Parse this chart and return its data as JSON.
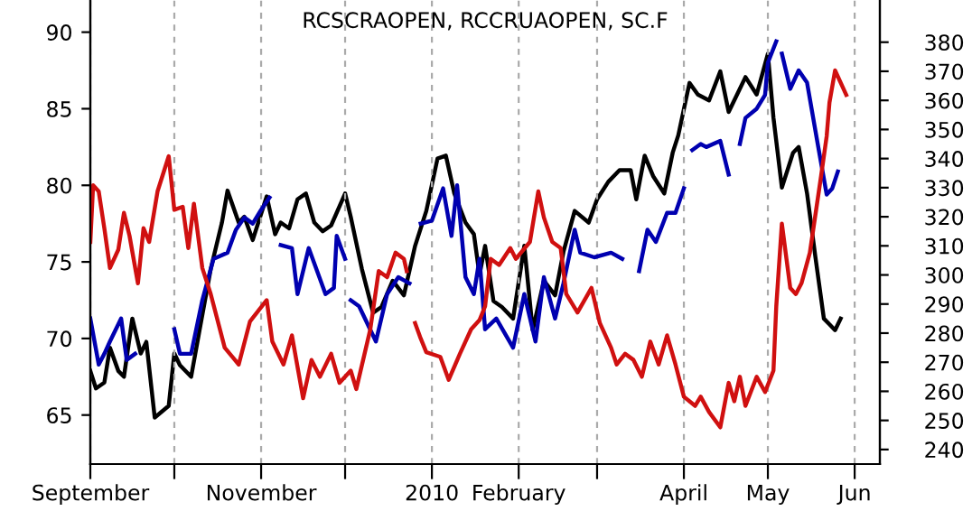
{
  "chart_data": {
    "type": "line",
    "title": "RCSCRAOPEN, RCCRUAOPEN, SC.F",
    "xlim": [
      "2009-09-01",
      "2010-06-10"
    ],
    "xticks": [
      {
        "value": "2009-09-01",
        "label": "September"
      },
      {
        "value": "2009-10-01",
        "label": null
      },
      {
        "value": "2009-11-01",
        "label": "November"
      },
      {
        "value": "2009-12-01",
        "label": null
      },
      {
        "value": "2010-01-01",
        "label": "2010"
      },
      {
        "value": "2010-02-01",
        "label": "February"
      },
      {
        "value": "2010-03-01",
        "label": null
      },
      {
        "value": "2010-04-01",
        "label": "April"
      },
      {
        "value": "2010-05-01",
        "label": "May"
      },
      {
        "value": "2010-06-01",
        "label": "Jun"
      }
    ],
    "ylim": [
      61.8,
      92.1
    ],
    "yticks": [
      65,
      70,
      75,
      80,
      85,
      90
    ],
    "y2lim": [
      235,
      394.5
    ],
    "y2ticks": [
      240,
      250,
      260,
      270,
      280,
      290,
      300,
      310,
      320,
      330,
      340,
      350,
      360,
      370,
      380
    ],
    "grid": "x",
    "marker": "none",
    "line_style": "solid",
    "series": [
      {
        "color": "#000000",
        "axis": "y2",
        "x": [
          "2009-09-01",
          "2009-09-03",
          "2009-09-06",
          "2009-09-08",
          "2009-09-11",
          "2009-09-13",
          "2009-09-16",
          "2009-09-19",
          "2009-09-21",
          "2009-09-24",
          "2009-09-29",
          "2009-10-01",
          "2009-10-03",
          "2009-10-07",
          "2009-10-10",
          "2009-10-14",
          "2009-10-18",
          "2009-10-20",
          "2009-10-24",
          "2009-10-26",
          "2009-10-29",
          "2009-10-31",
          "2009-11-03",
          "2009-11-06",
          "2009-11-08",
          "2009-11-11",
          "2009-11-14",
          "2009-11-17",
          "2009-11-20",
          "2009-11-23",
          "2009-11-26",
          "2009-12-01",
          "2009-12-03",
          "2009-12-07",
          "2009-12-11",
          "2009-12-14",
          "2009-12-18",
          "2009-12-22",
          "2009-12-26",
          "2009-12-30",
          "2010-01-03",
          "2010-01-06",
          "2010-01-09",
          "2010-01-13",
          "2010-01-16",
          "2010-01-18",
          "2010-01-20",
          "2010-01-23",
          "2010-01-26",
          "2010-01-30",
          "2010-02-03",
          "2010-02-06",
          "2010-02-10",
          "2010-02-14",
          "2010-02-17",
          "2010-02-21",
          "2010-02-26",
          "2010-03-01",
          "2010-03-05",
          "2010-03-09",
          "2010-03-13",
          "2010-03-15",
          "2010-03-18",
          "2010-03-21",
          "2010-03-25",
          "2010-03-28",
          "2010-03-30",
          "2010-04-03",
          "2010-04-06",
          "2010-04-10",
          "2010-04-14",
          "2010-04-17",
          "2010-04-20",
          "2010-04-23",
          "2010-04-27",
          "2010-05-01",
          "2010-05-03",
          "2010-05-06",
          "2010-05-10",
          "2010-05-12",
          "2010-05-15",
          "2010-05-18",
          "2010-05-21",
          "2010-05-23",
          "2010-05-25",
          "2010-05-27"
        ],
        "values": [
          267,
          261,
          263,
          275,
          267,
          265,
          285,
          273,
          277,
          251,
          255,
          273,
          269,
          265,
          281,
          302,
          318,
          329,
          318,
          320,
          312,
          318,
          327,
          314,
          318,
          316,
          326,
          328,
          318,
          315,
          317,
          328,
          320,
          302,
          287,
          289,
          298,
          293,
          310,
          322,
          340,
          341,
          328,
          318,
          314,
          300,
          310,
          291,
          289,
          285,
          310,
          281,
          298,
          293,
          308,
          322,
          318,
          326,
          332,
          336,
          336,
          326,
          341,
          334,
          328,
          342,
          348,
          366,
          362,
          360,
          370,
          356,
          362,
          368,
          362,
          376,
          354,
          330,
          342,
          344,
          328,
          306,
          285,
          283,
          281,
          285
        ]
      },
      {
        "color": "#0000b0",
        "x": [
          "2009-09-01",
          "2009-09-04",
          "2009-09-06",
          "2009-09-08",
          "2009-09-12",
          "2009-09-14",
          "2009-09-17",
          "2009-09-24",
          "2009-10-01",
          "2009-10-03",
          "2009-10-07",
          "2009-10-11",
          "2009-10-15",
          "2009-10-20",
          "2009-10-23",
          "2009-10-26",
          "2009-10-29",
          "2009-11-01",
          "2009-11-04",
          "2009-11-06",
          "2009-11-08",
          "2009-11-12",
          "2009-11-14",
          "2009-11-18",
          "2009-11-21",
          "2009-11-24",
          "2009-11-27",
          "2009-11-28",
          "2009-12-01",
          "2009-12-02",
          "2009-12-03",
          "2009-12-06",
          "2009-12-12",
          "2009-12-16",
          "2009-12-20",
          "2009-12-24",
          "2009-12-26",
          "2009-12-28",
          "2010-01-01",
          "2010-01-05",
          "2010-01-08",
          "2010-01-10",
          "2010-01-13",
          "2010-01-16",
          "2010-01-18",
          "2010-01-20",
          "2010-01-24",
          "2010-01-30",
          "2010-02-03",
          "2010-02-07",
          "2010-02-10",
          "2010-02-14",
          "2010-02-17",
          "2010-02-21",
          "2010-02-23",
          "2010-02-28",
          "2010-03-06",
          "2010-03-10",
          "2010-03-13",
          "2010-03-16",
          "2010-03-19",
          "2010-03-22",
          "2010-03-26",
          "2010-03-29",
          "2010-04-01",
          "2010-04-02",
          "2010-04-04",
          "2010-04-07",
          "2010-04-09",
          "2010-04-14",
          "2010-04-17",
          "2010-04-19",
          "2010-04-21",
          "2010-04-23",
          "2010-04-27",
          "2010-04-30",
          "2010-05-01",
          "2010-05-04",
          "2010-05-05",
          "2010-05-06",
          "2010-05-09",
          "2010-05-12",
          "2010-05-15",
          "2010-05-19",
          "2010-05-22",
          "2010-05-24",
          "2010-05-26"
        ],
        "values": [
          71.3,
          68.3,
          69,
          69.8,
          71.3,
          68.6,
          69,
          null,
          70.6,
          69,
          69,
          72.5,
          75.2,
          75.6,
          77.1,
          77.9,
          77.5,
          78.4,
          79.2,
          null,
          76.1,
          75.9,
          72.9,
          75.9,
          74.4,
          72.9,
          73.3,
          76.7,
          75.2,
          null,
          72.5,
          72.1,
          69.8,
          72.9,
          74,
          73.6,
          null,
          77.5,
          77.7,
          79.8,
          76.7,
          80,
          74,
          72.9,
          75.2,
          70.6,
          71.3,
          69.4,
          72.9,
          69.8,
          74,
          71.3,
          73.6,
          77.1,
          75.6,
          75.3,
          75.6,
          75.2,
          null,
          74.4,
          77.1,
          76.3,
          78.2,
          78.2,
          79.8,
          null,
          82.3,
          82.7,
          82.5,
          82.9,
          80.7,
          null,
          82.7,
          84.4,
          85,
          85.9,
          88,
          89.4,
          null,
          88.6,
          86.3,
          87.5,
          86.7,
          82.5,
          79.4,
          79.8,
          80.9
        ]
      },
      {
        "color": "#d01010",
        "x": [
          "2009-09-01",
          "2009-09-02",
          "2009-09-04",
          "2009-09-06",
          "2009-09-08",
          "2009-09-11",
          "2009-09-13",
          "2009-09-15",
          "2009-09-18",
          "2009-09-20",
          "2009-09-22",
          "2009-09-25",
          "2009-09-29",
          "2009-10-01",
          "2009-10-04",
          "2009-10-06",
          "2009-10-08",
          "2009-10-11",
          "2009-10-14",
          "2009-10-19",
          "2009-10-24",
          "2009-10-28",
          "2009-11-03",
          "2009-11-05",
          "2009-11-09",
          "2009-11-12",
          "2009-11-16",
          "2009-11-19",
          "2009-11-22",
          "2009-11-26",
          "2009-11-29",
          "2009-12-03",
          "2009-12-05",
          "2009-12-10",
          "2009-12-13",
          "2009-12-16",
          "2009-12-19",
          "2009-12-22",
          "2009-12-23",
          "2009-12-25",
          "2009-12-26",
          "2009-12-28",
          "2009-12-30",
          "2010-01-04",
          "2010-01-07",
          "2010-01-11",
          "2010-01-15",
          "2010-01-18",
          "2010-01-20",
          "2010-01-22",
          "2010-01-25",
          "2010-01-29",
          "2010-01-31",
          "2010-02-05",
          "2010-02-08",
          "2010-02-10",
          "2010-02-13",
          "2010-02-16",
          "2010-02-18",
          "2010-02-22",
          "2010-02-27",
          "2010-03-02",
          "2010-03-06",
          "2010-03-08",
          "2010-03-11",
          "2010-03-14",
          "2010-03-17",
          "2010-03-20",
          "2010-03-23",
          "2010-03-26",
          "2010-03-29",
          "2010-04-01",
          "2010-04-05",
          "2010-04-07",
          "2010-04-10",
          "2010-04-14",
          "2010-04-17",
          "2010-04-19",
          "2010-04-21",
          "2010-04-23",
          "2010-04-27",
          "2010-04-30",
          "2010-05-03",
          "2010-05-04",
          "2010-05-06",
          "2010-05-09",
          "2010-05-11",
          "2010-05-13",
          "2010-05-16",
          "2010-05-20",
          "2010-05-22",
          "2010-05-23",
          "2010-05-25",
          "2010-05-29"
        ],
        "values": [
          76.3,
          80,
          79.6,
          77.2,
          74.6,
          75.8,
          78.2,
          76.7,
          73.6,
          77.2,
          76.3,
          79.6,
          81.9,
          78.4,
          78.6,
          75.9,
          78.8,
          74.6,
          72.9,
          69.4,
          68.3,
          71.1,
          72.5,
          69.8,
          68.3,
          70.2,
          66.1,
          68.6,
          67.5,
          69,
          67.1,
          67.9,
          66.7,
          70.6,
          74.4,
          74,
          75.6,
          75.2,
          74.4,
          null,
          71,
          70,
          69.1,
          68.8,
          67.3,
          69,
          70.6,
          71.2,
          72.1,
          75.2,
          74.8,
          75.9,
          75.2,
          76.3,
          79.6,
          77.9,
          76.3,
          75.9,
          72.9,
          71.7,
          73.3,
          71,
          69.4,
          68.3,
          69,
          68.6,
          67.5,
          69.8,
          68.3,
          70.2,
          68.3,
          66.2,
          65.6,
          66.2,
          65.2,
          64.2,
          67.1,
          65.9,
          67.5,
          65.6,
          67.5,
          66.5,
          67.9,
          72.1,
          77.5,
          73.3,
          72.9,
          73.6,
          75.6,
          80.6,
          83.2,
          85.4,
          87.5,
          85.9
        ]
      }
    ]
  }
}
